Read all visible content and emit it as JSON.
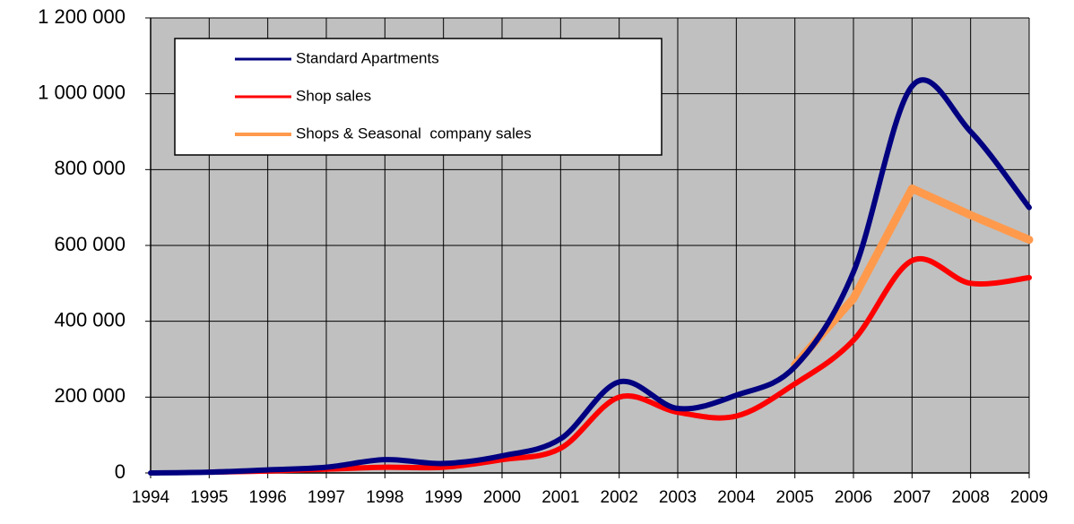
{
  "chart_data": {
    "type": "line",
    "x": [
      1994,
      1995,
      1996,
      1997,
      1998,
      1999,
      2000,
      2001,
      2002,
      2003,
      2004,
      2005,
      2006,
      2007,
      2008,
      2009
    ],
    "xlim": [
      1994,
      2009
    ],
    "xticks": [
      1994,
      1995,
      1996,
      1997,
      1998,
      1999,
      2000,
      2001,
      2002,
      2003,
      2004,
      2005,
      2006,
      2007,
      2008,
      2009
    ],
    "ylim": [
      0,
      1200000
    ],
    "yticks": [
      {
        "value": 0,
        "label": "0"
      },
      {
        "value": 200000,
        "label": "200 000"
      },
      {
        "value": 400000,
        "label": "400 000"
      },
      {
        "value": 600000,
        "label": "600 000"
      },
      {
        "value": 800000,
        "label": "800 000"
      },
      {
        "value": 1000000,
        "label": "1 000 000"
      },
      {
        "value": 1200000,
        "label": "1 200 000"
      }
    ],
    "grid": true,
    "legend": "top-left",
    "series": [
      {
        "name": "Standard Apartments",
        "color": "#000080",
        "smooth": true,
        "values": [
          0,
          2000,
          8000,
          15000,
          35000,
          25000,
          45000,
          90000,
          240000,
          170000,
          205000,
          280000,
          530000,
          1020000,
          900000,
          700000
        ]
      },
      {
        "name": "Shop sales",
        "color": "#ff0000",
        "smooth": true,
        "values": [
          null,
          2000,
          5000,
          10000,
          15000,
          15000,
          35000,
          65000,
          200000,
          160000,
          150000,
          235000,
          350000,
          560000,
          500000,
          515000
        ]
      },
      {
        "name": "Shops & Seasonal  company sales",
        "color": "#ff9a4d",
        "smooth": false,
        "values": [
          null,
          null,
          null,
          null,
          null,
          null,
          null,
          null,
          null,
          null,
          null,
          285000,
          460000,
          750000,
          680000,
          615000
        ]
      }
    ]
  }
}
